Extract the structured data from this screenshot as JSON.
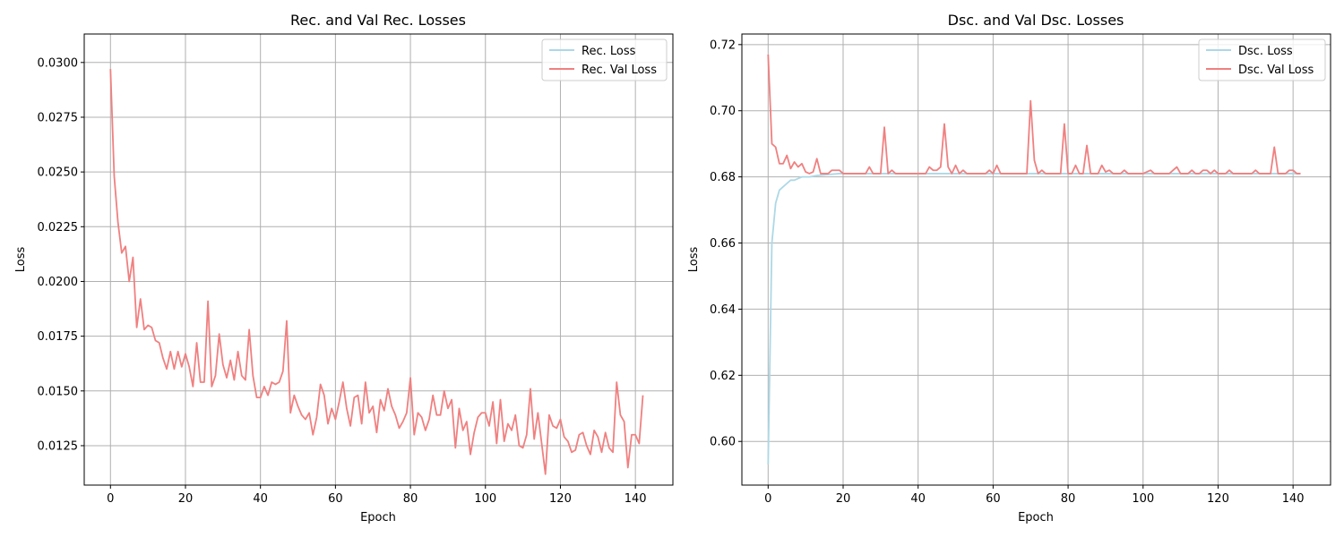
{
  "chart_data": [
    {
      "type": "line",
      "title": "Rec. and Val Rec. Losses",
      "xlabel": "Epoch",
      "ylabel": "Loss",
      "xlim": [
        -7,
        150
      ],
      "ylim": [
        0.0107,
        0.0313
      ],
      "xticks": [
        0,
        20,
        40,
        60,
        80,
        100,
        120,
        140
      ],
      "xtick_labels": [
        "0",
        "20",
        "40",
        "60",
        "80",
        "100",
        "120",
        "140"
      ],
      "yticks": [
        0.0125,
        0.015,
        0.0175,
        0.02,
        0.0225,
        0.025,
        0.0275,
        0.03
      ],
      "ytick_labels": [
        "0.0125",
        "0.0150",
        "0.0175",
        "0.0200",
        "0.0225",
        "0.0250",
        "0.0275",
        "0.0300"
      ],
      "grid": true,
      "legend": "upper right",
      "series": [
        {
          "name": "Rec. Loss",
          "color": "#add8e6",
          "values": []
        },
        {
          "name": "Rec. Val Loss",
          "color": "#f08080",
          "values": [
            0.0297,
            0.0248,
            0.0227,
            0.0213,
            0.0216,
            0.02,
            0.0211,
            0.0179,
            0.0192,
            0.0178,
            0.018,
            0.0179,
            0.0173,
            0.0172,
            0.0165,
            0.016,
            0.0168,
            0.016,
            0.0168,
            0.0161,
            0.0167,
            0.0161,
            0.0152,
            0.0172,
            0.0154,
            0.0154,
            0.0191,
            0.0152,
            0.0157,
            0.0176,
            0.0162,
            0.0156,
            0.0164,
            0.0155,
            0.0168,
            0.0157,
            0.0155,
            0.0178,
            0.0157,
            0.0147,
            0.0147,
            0.0152,
            0.0148,
            0.0154,
            0.0153,
            0.0154,
            0.0159,
            0.0182,
            0.014,
            0.0148,
            0.0143,
            0.0139,
            0.0137,
            0.014,
            0.013,
            0.0138,
            0.0153,
            0.0148,
            0.0135,
            0.0142,
            0.0137,
            0.0145,
            0.0154,
            0.0142,
            0.0134,
            0.0147,
            0.0148,
            0.0135,
            0.0154,
            0.014,
            0.0143,
            0.0131,
            0.0146,
            0.0141,
            0.0151,
            0.0143,
            0.0139,
            0.0133,
            0.0136,
            0.014,
            0.0156,
            0.013,
            0.014,
            0.0138,
            0.0132,
            0.0137,
            0.0148,
            0.0139,
            0.0139,
            0.015,
            0.0142,
            0.0146,
            0.0124,
            0.0142,
            0.0132,
            0.0136,
            0.0121,
            0.0131,
            0.0138,
            0.014,
            0.014,
            0.0134,
            0.0145,
            0.0126,
            0.0146,
            0.0127,
            0.0135,
            0.0132,
            0.0139,
            0.0125,
            0.0124,
            0.013,
            0.0151,
            0.0128,
            0.014,
            0.0126,
            0.0112,
            0.0139,
            0.0134,
            0.0133,
            0.0137,
            0.0129,
            0.0127,
            0.0122,
            0.0123,
            0.013,
            0.0131,
            0.0125,
            0.0121,
            0.0132,
            0.0129,
            0.0122,
            0.0131,
            0.0124,
            0.0122,
            0.0154,
            0.0139,
            0.0136,
            0.0115,
            0.013,
            0.013,
            0.0126,
            0.0148
          ]
        }
      ]
    },
    {
      "type": "line",
      "title": "Dsc. and Val Dsc. Losses",
      "xlabel": "Epoch",
      "ylabel": "Loss",
      "xlim": [
        -7,
        150
      ],
      "ylim": [
        0.5868,
        0.7232
      ],
      "xticks": [
        0,
        20,
        40,
        60,
        80,
        100,
        120,
        140
      ],
      "xtick_labels": [
        "0",
        "20",
        "40",
        "60",
        "80",
        "100",
        "120",
        "140"
      ],
      "yticks": [
        0.6,
        0.62,
        0.64,
        0.66,
        0.68,
        0.7,
        0.72
      ],
      "ytick_labels": [
        "0.60",
        "0.62",
        "0.64",
        "0.66",
        "0.68",
        "0.70",
        "0.72"
      ],
      "grid": true,
      "legend": "upper right",
      "series": [
        {
          "name": "Dsc. Loss",
          "color": "#add8e6",
          "values": [
            0.593,
            0.66,
            0.672,
            0.676,
            0.677,
            0.678,
            0.679,
            0.679,
            0.6795,
            0.68,
            0.68,
            0.68,
            0.6802,
            0.6804,
            0.6805,
            0.6806,
            0.6807,
            0.6808,
            0.6809,
            0.681,
            0.681,
            0.681,
            0.681,
            0.681,
            0.681,
            0.681,
            0.681,
            0.681,
            0.681,
            0.681,
            0.681,
            0.681,
            0.681,
            0.681,
            0.681,
            0.681,
            0.681,
            0.681,
            0.681,
            0.681,
            0.681,
            0.681,
            0.681,
            0.681,
            0.681,
            0.681,
            0.681,
            0.681,
            0.681,
            0.681,
            0.681,
            0.681,
            0.681,
            0.681,
            0.681,
            0.681,
            0.681,
            0.681,
            0.681,
            0.681,
            0.681,
            0.681,
            0.681,
            0.681,
            0.681,
            0.681,
            0.681,
            0.681,
            0.681,
            0.681,
            0.681,
            0.681,
            0.681,
            0.681,
            0.681,
            0.681,
            0.681,
            0.681,
            0.681,
            0.681,
            0.681,
            0.681,
            0.681,
            0.681,
            0.681,
            0.681,
            0.681,
            0.681,
            0.681,
            0.681,
            0.681,
            0.681,
            0.681,
            0.681,
            0.681,
            0.681,
            0.681,
            0.681,
            0.681,
            0.681,
            0.681,
            0.681,
            0.681,
            0.681,
            0.681,
            0.681,
            0.681,
            0.681,
            0.681,
            0.681,
            0.681,
            0.681,
            0.681,
            0.681,
            0.681,
            0.681,
            0.681,
            0.681,
            0.681,
            0.681,
            0.681,
            0.681,
            0.681,
            0.681,
            0.681,
            0.681,
            0.681,
            0.681,
            0.681,
            0.681,
            0.681,
            0.681,
            0.681,
            0.681,
            0.681,
            0.681,
            0.681,
            0.681,
            0.681,
            0.681,
            0.681,
            0.681,
            0.681
          ]
        },
        {
          "name": "Dsc. Val Loss",
          "color": "#f08080",
          "values": [
            0.717,
            0.69,
            0.689,
            0.684,
            0.684,
            0.6865,
            0.6825,
            0.6845,
            0.683,
            0.684,
            0.6815,
            0.681,
            0.6815,
            0.6855,
            0.681,
            0.681,
            0.681,
            0.682,
            0.682,
            0.682,
            0.681,
            0.681,
            0.681,
            0.681,
            0.681,
            0.681,
            0.681,
            0.683,
            0.681,
            0.681,
            0.681,
            0.695,
            0.681,
            0.682,
            0.681,
            0.681,
            0.681,
            0.681,
            0.681,
            0.681,
            0.681,
            0.681,
            0.681,
            0.683,
            0.682,
            0.682,
            0.683,
            0.696,
            0.683,
            0.681,
            0.6835,
            0.681,
            0.682,
            0.681,
            0.681,
            0.681,
            0.681,
            0.681,
            0.681,
            0.682,
            0.681,
            0.6835,
            0.681,
            0.681,
            0.681,
            0.681,
            0.681,
            0.681,
            0.681,
            0.681,
            0.703,
            0.685,
            0.681,
            0.682,
            0.681,
            0.681,
            0.681,
            0.681,
            0.681,
            0.696,
            0.681,
            0.681,
            0.6835,
            0.681,
            0.681,
            0.6895,
            0.681,
            0.681,
            0.681,
            0.6835,
            0.6815,
            0.682,
            0.681,
            0.681,
            0.681,
            0.682,
            0.681,
            0.681,
            0.681,
            0.681,
            0.681,
            0.6815,
            0.682,
            0.681,
            0.681,
            0.681,
            0.681,
            0.681,
            0.682,
            0.683,
            0.681,
            0.681,
            0.681,
            0.682,
            0.681,
            0.681,
            0.682,
            0.682,
            0.681,
            0.682,
            0.681,
            0.681,
            0.681,
            0.682,
            0.681,
            0.681,
            0.681,
            0.681,
            0.681,
            0.681,
            0.682,
            0.681,
            0.681,
            0.681,
            0.681,
            0.689,
            0.681,
            0.681,
            0.681,
            0.682,
            0.682,
            0.681,
            0.681
          ]
        }
      ]
    }
  ]
}
